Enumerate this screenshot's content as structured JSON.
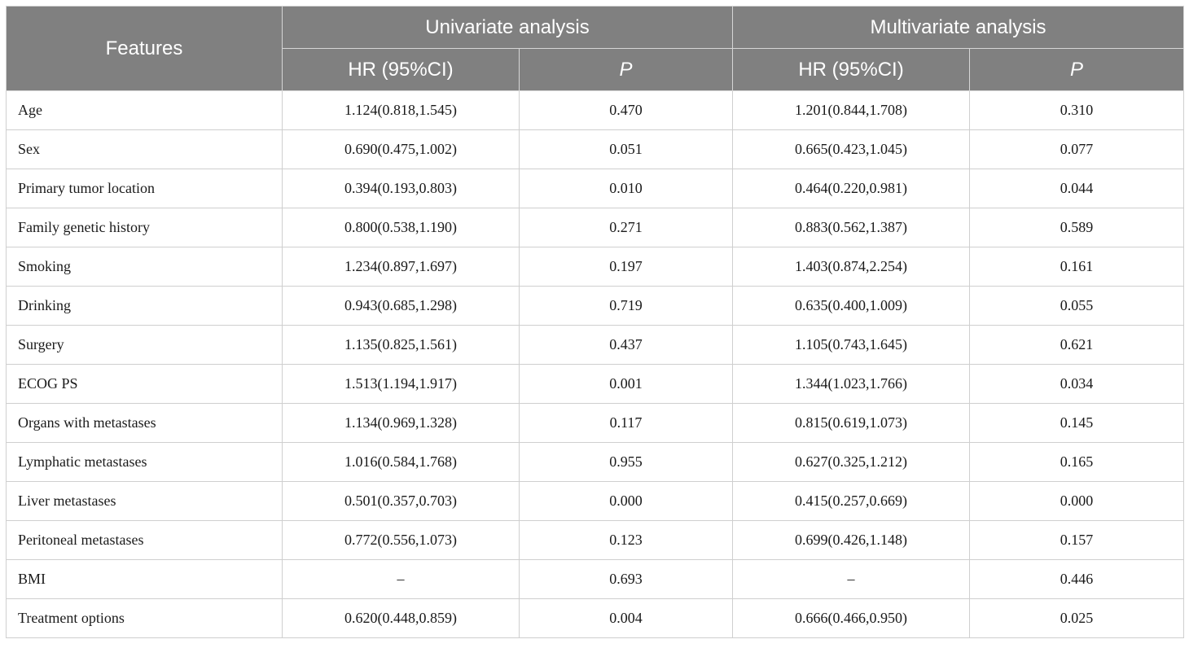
{
  "header": {
    "features": "Features",
    "univariate": "Univariate analysis",
    "multivariate": "Multivariate analysis",
    "hr": "HR (95%CI)",
    "p": "P"
  },
  "rows": [
    {
      "feature": "Age",
      "uni_hr": "1.124(0.818,1.545)",
      "uni_p": "0.470",
      "multi_hr": "1.201(0.844,1.708)",
      "multi_p": "0.310"
    },
    {
      "feature": "Sex",
      "uni_hr": "0.690(0.475,1.002)",
      "uni_p": "0.051",
      "multi_hr": "0.665(0.423,1.045)",
      "multi_p": "0.077"
    },
    {
      "feature": "Primary tumor location",
      "uni_hr": "0.394(0.193,0.803)",
      "uni_p": "0.010",
      "multi_hr": "0.464(0.220,0.981)",
      "multi_p": "0.044"
    },
    {
      "feature": "Family genetic history",
      "uni_hr": "0.800(0.538,1.190)",
      "uni_p": "0.271",
      "multi_hr": "0.883(0.562,1.387)",
      "multi_p": "0.589"
    },
    {
      "feature": "Smoking",
      "uni_hr": "1.234(0.897,1.697)",
      "uni_p": "0.197",
      "multi_hr": "1.403(0.874,2.254)",
      "multi_p": "0.161"
    },
    {
      "feature": "Drinking",
      "uni_hr": "0.943(0.685,1.298)",
      "uni_p": "0.719",
      "multi_hr": "0.635(0.400,1.009)",
      "multi_p": "0.055"
    },
    {
      "feature": "Surgery",
      "uni_hr": "1.135(0.825,1.561)",
      "uni_p": "0.437",
      "multi_hr": "1.105(0.743,1.645)",
      "multi_p": "0.621"
    },
    {
      "feature": "ECOG PS",
      "uni_hr": "1.513(1.194,1.917)",
      "uni_p": "0.001",
      "multi_hr": "1.344(1.023,1.766)",
      "multi_p": "0.034"
    },
    {
      "feature": "Organs with metastases",
      "uni_hr": "1.134(0.969,1.328)",
      "uni_p": "0.117",
      "multi_hr": "0.815(0.619,1.073)",
      "multi_p": "0.145"
    },
    {
      "feature": "Lymphatic metastases",
      "uni_hr": "1.016(0.584,1.768)",
      "uni_p": "0.955",
      "multi_hr": "0.627(0.325,1.212)",
      "multi_p": "0.165"
    },
    {
      "feature": "Liver metastases",
      "uni_hr": "0.501(0.357,0.703)",
      "uni_p": "0.000",
      "multi_hr": "0.415(0.257,0.669)",
      "multi_p": "0.000"
    },
    {
      "feature": "Peritoneal metastases",
      "uni_hr": "0.772(0.556,1.073)",
      "uni_p": "0.123",
      "multi_hr": "0.699(0.426,1.148)",
      "multi_p": "0.157"
    },
    {
      "feature": "BMI",
      "uni_hr": "–",
      "uni_p": "0.693",
      "multi_hr": "–",
      "multi_p": "0.446"
    },
    {
      "feature": "Treatment options",
      "uni_hr": "0.620(0.448,0.859)",
      "uni_p": "0.004",
      "multi_hr": "0.666(0.466,0.950)",
      "multi_p": "0.025"
    }
  ]
}
